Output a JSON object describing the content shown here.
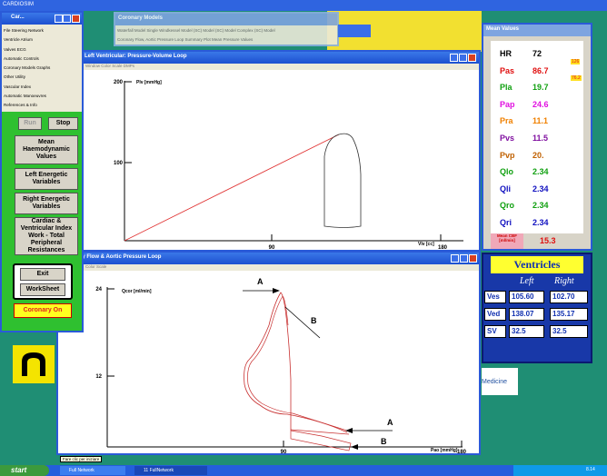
{
  "app_title": "CARDIOSIM",
  "main_panel": {
    "title": "Car...",
    "menu": [
      "File  Steering  Network",
      "Ventricle  Atrium",
      "Valves  ECG",
      "Automatic Controls",
      "Coronary Models  Graphs",
      "Other  Utility",
      "Vascular Index",
      "Automatic Manoeuvres",
      "References & Info"
    ],
    "run": "Run",
    "stop": "Stop",
    "buttons": [
      "Mean Haemodynamic Values",
      "Left Energetic Variables",
      "Right Energetic Variables",
      "Cardiac & Ventricular Index Work - Total Peripheral Resistances"
    ],
    "exit": "Exit",
    "worksheet": "WorkSheet",
    "coronary_status": "Coronary On"
  },
  "coronary_models": {
    "title": "Coronary Models",
    "menu": [
      "Waterfall Model   Single Windkessel Model (SC)   Model (SC) Model   Complex (SC) Model",
      "Coronary Flow, Aortic Pressure Loop   Summary Plot   Mean Pressure Values"
    ]
  },
  "lv_window": {
    "title": "Left Ventricular: Pressure-Volume Loop",
    "menu": "Window  Color  Scale  DMPs",
    "y_label": "Plv [mmHg]",
    "x_label": "Vlv [cc]",
    "yticks": [
      "200",
      "100"
    ],
    "xticks": [
      "90",
      "180"
    ]
  },
  "cf_window": {
    "title": "Coronary Flow & Aortic Pressure Loop",
    "menu": "Color  Scale",
    "y_label": "Qcor [ml/min]",
    "x_label": "Pao [mmHg]",
    "yticks": [
      "24",
      "12"
    ],
    "xticks": [
      "90",
      "180"
    ],
    "annotations": [
      "A",
      "B",
      "A",
      "B"
    ]
  },
  "mean_values": {
    "title": "Mean Values",
    "rows": [
      {
        "label": "HR",
        "value": "72",
        "color": "#000000"
      },
      {
        "label": "Pas",
        "value": "86.7",
        "color": "#e01010"
      },
      {
        "label": "Pla",
        "value": "19.7",
        "color": "#10a010"
      },
      {
        "label": "Pap",
        "value": "24.6",
        "color": "#e010e0"
      },
      {
        "label": "Pra",
        "value": "11.1",
        "color": "#f08000"
      },
      {
        "label": "Pvs",
        "value": "11.5",
        "color": "#8010a0"
      },
      {
        "label": "Pvp",
        "value": "20.",
        "color": "#c06000"
      },
      {
        "label": "Qlo",
        "value": "2.34",
        "color": "#10a010"
      },
      {
        "label": "Qli",
        "value": "2.34",
        "color": "#1010c0"
      },
      {
        "label": "Qro",
        "value": "2.34",
        "color": "#10a010"
      },
      {
        "label": "Qri",
        "value": "2.34",
        "color": "#1010c0"
      }
    ],
    "pas_max": "126",
    "pas_min": "76.2",
    "cbf_label": "Mean CBF [ml/min]",
    "cbf_value": "15.3"
  },
  "ventricles": {
    "title": "Ventricles",
    "columns": [
      "Left",
      "Right"
    ],
    "rows": [
      {
        "label": "Ves",
        "left": "105.60",
        "right": "102.70"
      },
      {
        "label": "Ved",
        "left": "138.07",
        "right": "135.17"
      },
      {
        "label": "SV",
        "left": "32.5",
        "right": "32.5"
      }
    ]
  },
  "background_text": "Medicine",
  "taskbar": {
    "start": "start",
    "items": [
      "Full Network",
      "11 FullNetwork"
    ],
    "tooltip": "Fare clic per iniziare",
    "clock": "8.14"
  }
}
